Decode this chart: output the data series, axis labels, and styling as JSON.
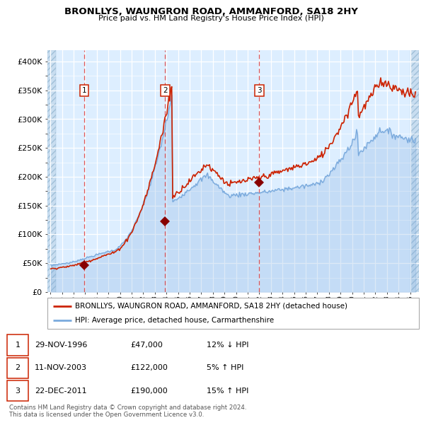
{
  "title": "BRONLLYS, WAUNGRON ROAD, AMMANFORD, SA18 2HY",
  "subtitle": "Price paid vs. HM Land Registry's House Price Index (HPI)",
  "legend_line1": "BRONLLYS, WAUNGRON ROAD, AMMANFORD, SA18 2HY (detached house)",
  "legend_line2": "HPI: Average price, detached house, Carmarthenshire",
  "sale_prices": [
    47000,
    122000,
    190000
  ],
  "sale_labels": [
    "1",
    "2",
    "3"
  ],
  "sale_hpi_pct": [
    "12% ↓ HPI",
    "5% ↑ HPI",
    "15% ↑ HPI"
  ],
  "sale_display_dates": [
    "29-NOV-1996",
    "11-NOV-2003",
    "22-DEC-2011"
  ],
  "sale_display_prices": [
    "£47,000",
    "£122,000",
    "£190,000"
  ],
  "ylabel_ticks": [
    0,
    50000,
    100000,
    150000,
    200000,
    250000,
    300000,
    350000,
    400000
  ],
  "ylabel_labels": [
    "£0",
    "£50K",
    "£100K",
    "£150K",
    "£200K",
    "£250K",
    "£300K",
    "£350K",
    "£400K"
  ],
  "hpi_color": "#7aaadd",
  "price_paid_color": "#cc2200",
  "marker_color": "#880000",
  "dashed_line_color": "#dd4444",
  "plot_bg_color": "#ddeeff",
  "footer_text": "Contains HM Land Registry data © Crown copyright and database right 2024.\nThis data is licensed under the Open Government Licence v3.0.",
  "xlim_start": 1993.75,
  "xlim_end": 2025.75,
  "ylim": [
    0,
    420000
  ]
}
